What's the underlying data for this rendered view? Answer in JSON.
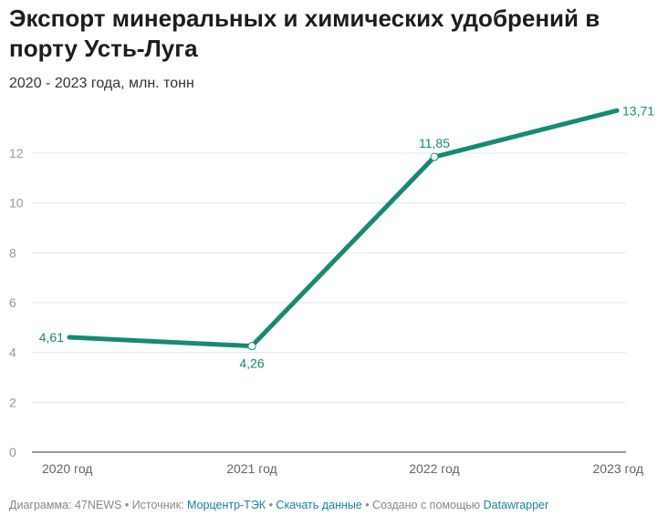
{
  "title": "Экспорт минеральных и химических удобрений в порту Усть-Луга",
  "subtitle": "2020 - 2023 года, млн. тонн",
  "colors": {
    "line": "#168a74",
    "grid": "#e4e4e4",
    "link": "#1d81a2"
  },
  "chart_data": {
    "type": "line",
    "title": "Экспорт минеральных и химических удобрений в порту Усть-Луга",
    "subtitle": "2020 - 2023 года, млн. тонн",
    "categories": [
      "2020 год",
      "2021 год",
      "2022 год",
      "2023 год"
    ],
    "series": [
      {
        "name": "Экспорт",
        "values": [
          4.61,
          4.26,
          11.85,
          13.71
        ]
      }
    ],
    "data_labels": [
      "4,61",
      "4,26",
      "11,85",
      "13,71"
    ],
    "yticks": [
      0,
      2,
      4,
      6,
      8,
      10,
      12
    ],
    "ylim": [
      0,
      13.71
    ],
    "grid": true,
    "xlabel": "",
    "ylabel": ""
  },
  "footer": {
    "chart_by": "Диаграмма: 47NEWS",
    "source_label": "Источник:",
    "source_link": "Морцентр-ТЭК",
    "download": "Скачать данные",
    "created_with": "Создано с помощью",
    "tool_link": "Datawrapper",
    "sep": " • "
  }
}
